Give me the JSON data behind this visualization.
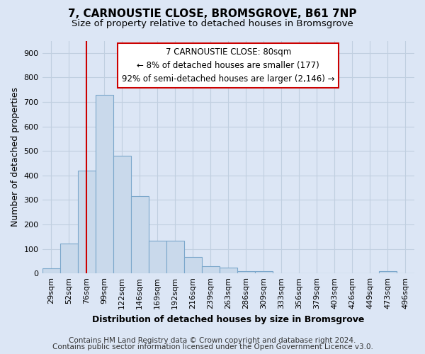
{
  "title": "7, CARNOUSTIE CLOSE, BROMSGROVE, B61 7NP",
  "subtitle": "Size of property relative to detached houses in Bromsgrove",
  "xlabel": "Distribution of detached houses by size in Bromsgrove",
  "ylabel": "Number of detached properties",
  "bar_labels": [
    "29sqm",
    "52sqm",
    "76sqm",
    "99sqm",
    "122sqm",
    "146sqm",
    "169sqm",
    "192sqm",
    "216sqm",
    "239sqm",
    "263sqm",
    "286sqm",
    "309sqm",
    "333sqm",
    "356sqm",
    "379sqm",
    "403sqm",
    "426sqm",
    "449sqm",
    "473sqm",
    "496sqm"
  ],
  "bar_values": [
    20,
    122,
    420,
    730,
    480,
    315,
    133,
    133,
    67,
    30,
    25,
    10,
    10,
    0,
    0,
    0,
    0,
    0,
    0,
    10,
    0
  ],
  "bar_color": "#c9d9eb",
  "bar_edge_color": "#7ba7cb",
  "vline_x": 2.5,
  "vline_color": "#cc0000",
  "annotation_line1": "7 CARNOUSTIE CLOSE: 80sqm",
  "annotation_line2": "← 8% of detached houses are smaller (177)",
  "annotation_line3": "92% of semi-detached houses are larger (2,146) →",
  "ylim": [
    0,
    950
  ],
  "yticks": [
    0,
    100,
    200,
    300,
    400,
    500,
    600,
    700,
    800,
    900
  ],
  "footer_line1": "Contains HM Land Registry data © Crown copyright and database right 2024.",
  "footer_line2": "Contains public sector information licensed under the Open Government Licence v3.0.",
  "bg_color": "#dce6f5",
  "plot_bg_color": "#dce6f5",
  "grid_color": "#c0cfe0",
  "title_fontsize": 11,
  "subtitle_fontsize": 9.5,
  "axis_label_fontsize": 9,
  "tick_fontsize": 8,
  "annotation_fontsize": 8.5,
  "footer_fontsize": 7.5
}
